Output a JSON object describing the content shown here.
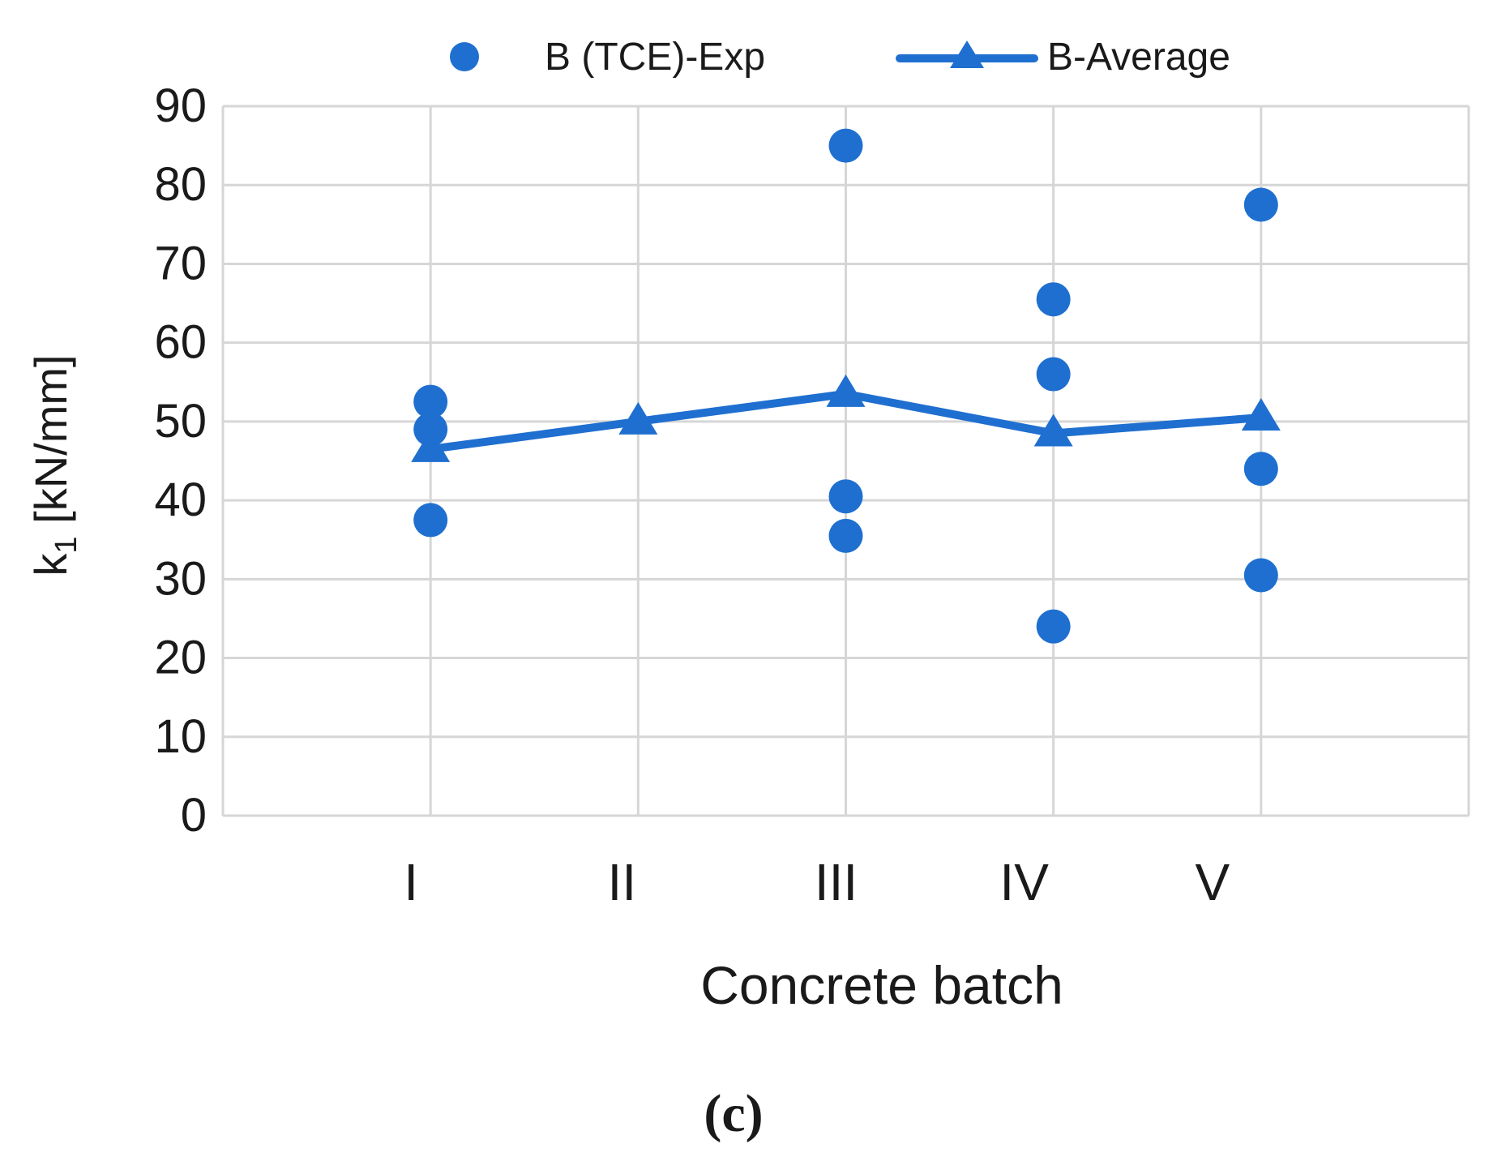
{
  "chart_data": {
    "type": "scatter",
    "categories": [
      "I",
      "II",
      "III",
      "IV",
      "V"
    ],
    "x_positions": [
      1,
      2,
      3,
      4,
      5
    ],
    "xlim": [
      0,
      6
    ],
    "ylim": [
      0,
      90
    ],
    "yticks": [
      0,
      10,
      20,
      30,
      40,
      50,
      60,
      70,
      80,
      90
    ],
    "xlabel": "Concrete batch",
    "ylabel_main": "k",
    "ylabel_sub": "1",
    "ylabel_unit": " [kN/mm]",
    "grid": true,
    "legend_position": "top",
    "series": [
      {
        "name": "B (TCE)-Exp",
        "kind": "markers",
        "marker": "circle",
        "points": [
          {
            "x": 1,
            "y": 52.5
          },
          {
            "x": 1,
            "y": 49.0
          },
          {
            "x": 1,
            "y": 37.5
          },
          {
            "x": 3,
            "y": 85.0
          },
          {
            "x": 3,
            "y": 40.5
          },
          {
            "x": 3,
            "y": 35.5
          },
          {
            "x": 4,
            "y": 65.5
          },
          {
            "x": 4,
            "y": 56.0
          },
          {
            "x": 4,
            "y": 24.0
          },
          {
            "x": 5,
            "y": 77.5
          },
          {
            "x": 5,
            "y": 44.0
          },
          {
            "x": 5,
            "y": 30.5
          }
        ]
      },
      {
        "name": "B-Average",
        "kind": "line",
        "marker": "triangle",
        "points": [
          {
            "x": 1,
            "y": 46.5
          },
          {
            "x": 2,
            "y": 50.0
          },
          {
            "x": 3,
            "y": 53.5
          },
          {
            "x": 4,
            "y": 48.5
          },
          {
            "x": 5,
            "y": 50.5
          }
        ]
      }
    ]
  },
  "caption": "(c)",
  "colors": {
    "series": "#1f6fd0",
    "grid": "#d6d6d6",
    "text": "#1a1a1a",
    "background": "#ffffff"
  }
}
